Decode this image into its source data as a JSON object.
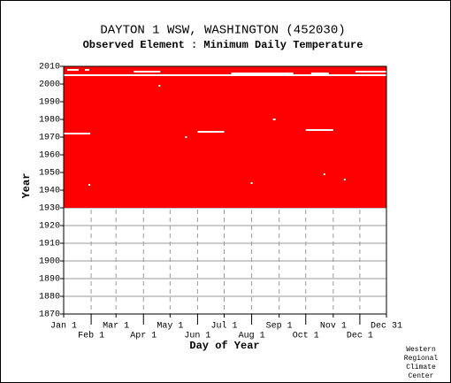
{
  "chart_data": {
    "type": "coverage",
    "title": "DAYTON 1 WSW, WASHINGTON   (452030)",
    "subtitle": "Observed Element : Minimum Daily Temperature",
    "x_label": "Day of Year",
    "y_label": "Year",
    "color": "#ff0000",
    "grid": true,
    "xlim": [
      1,
      365
    ],
    "ylim": [
      1870,
      2010
    ],
    "xticks": [
      {
        "value": 1,
        "label": "Jan 1"
      },
      {
        "value": 32,
        "label": "Feb 1"
      },
      {
        "value": 60,
        "label": "Mar 1"
      },
      {
        "value": 91,
        "label": "Apr 1"
      },
      {
        "value": 121,
        "label": "May 1"
      },
      {
        "value": 152,
        "label": "Jun 1"
      },
      {
        "value": 182,
        "label": "Jul 1"
      },
      {
        "value": 213,
        "label": "Aug 1"
      },
      {
        "value": 244,
        "label": "Sep 1"
      },
      {
        "value": 274,
        "label": "Oct 1"
      },
      {
        "value": 305,
        "label": "Nov 1"
      },
      {
        "value": 335,
        "label": "Dec 1"
      },
      {
        "value": 365,
        "label": "Dec 31"
      }
    ],
    "yticks": [
      1870,
      1880,
      1890,
      1900,
      1910,
      1920,
      1930,
      1940,
      1950,
      1960,
      1970,
      1980,
      1990,
      2000,
      2010
    ],
    "period": [
      1930,
      2010
    ],
    "missing": [
      {
        "year": 2008,
        "start": 5,
        "end": 18
      },
      {
        "year": 2008,
        "start": 25,
        "end": 30
      },
      {
        "year": 2007,
        "start": 80,
        "end": 110
      },
      {
        "year": 2007,
        "start": 330,
        "end": 365
      },
      {
        "year": 2006,
        "start": 190,
        "end": 260
      },
      {
        "year": 2006,
        "start": 280,
        "end": 300
      },
      {
        "year": 2005,
        "start": 1,
        "end": 365
      },
      {
        "year": 1999,
        "start": 108,
        "end": 110
      },
      {
        "year": 1980,
        "start": 237,
        "end": 240
      },
      {
        "year": 1974,
        "start": 274,
        "end": 305
      },
      {
        "year": 1973,
        "start": 152,
        "end": 182
      },
      {
        "year": 1972,
        "start": 1,
        "end": 31
      },
      {
        "year": 1970,
        "start": 138,
        "end": 140
      },
      {
        "year": 1949,
        "start": 294,
        "end": 296
      },
      {
        "year": 1946,
        "start": 317,
        "end": 319
      },
      {
        "year": 1944,
        "start": 212,
        "end": 214
      },
      {
        "year": 1943,
        "start": 29,
        "end": 31
      }
    ],
    "footer": [
      "Western",
      "Regional",
      "Climate",
      "Center"
    ]
  }
}
